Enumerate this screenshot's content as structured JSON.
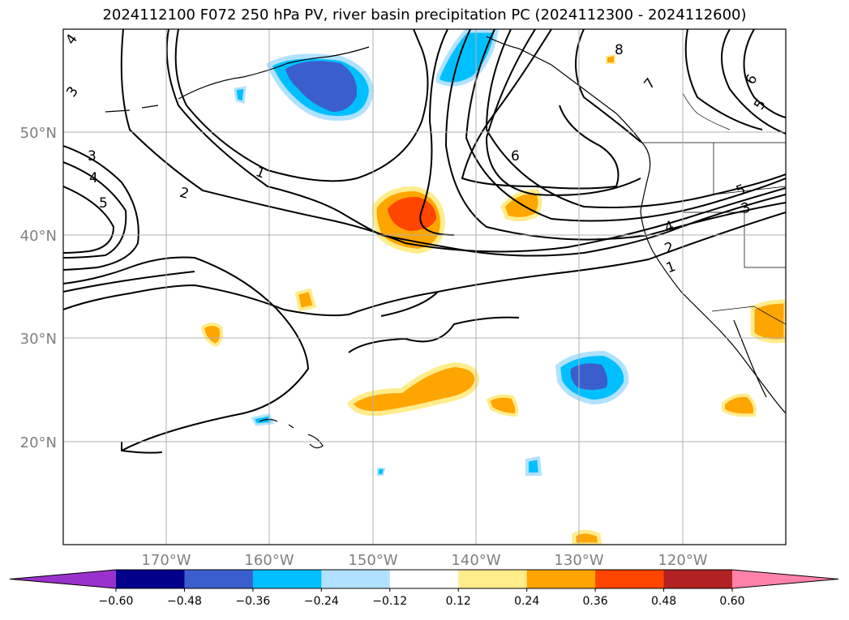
{
  "title": "2024112100 F072 250 hPa PV, river basin precipitation PC (2024112300 - 2024112600)",
  "map": {
    "lon_ticks": [
      "170°W",
      "160°W",
      "150°W",
      "140°W",
      "130°W",
      "120°W"
    ],
    "lat_ticks": [
      "50°N",
      "40°N",
      "30°N",
      "20°N"
    ],
    "lon_range": [
      -180,
      -110
    ],
    "lat_range": [
      10,
      60
    ],
    "grid": true,
    "pv_contour_labels": [
      "1",
      "2",
      "3",
      "4",
      "5",
      "6",
      "7",
      "8",
      "1",
      "2",
      "3",
      "4",
      "5",
      "6",
      "5",
      "4",
      "3"
    ]
  },
  "colorbar": {
    "tick_labels": [
      "−0.60",
      "−0.48",
      "−0.36",
      "−0.24",
      "−0.12",
      "0.12",
      "0.24",
      "0.36",
      "0.48",
      "0.60"
    ],
    "colors": [
      "#9932cc",
      "#00008b",
      "#3a5fcd",
      "#00bfff",
      "#b0e2ff",
      "#ffffff",
      "#ffec8b",
      "#ffa500",
      "#ff4500",
      "#b22222",
      "#ff82ab"
    ],
    "extend": "both"
  }
}
